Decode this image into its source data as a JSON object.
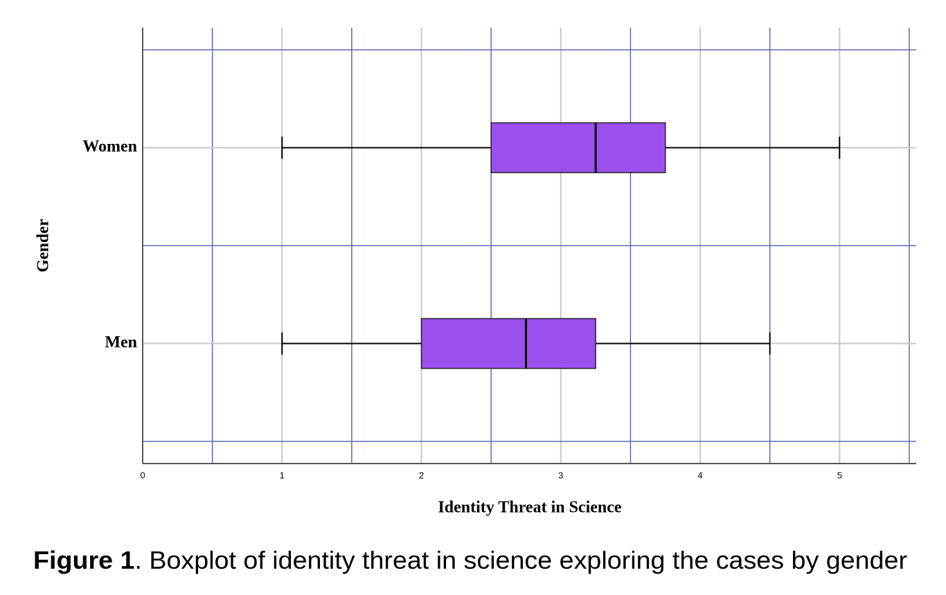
{
  "chart_data": {
    "type": "boxplot",
    "xlabel": "Identity Threat in Science",
    "ylabel": "Gender",
    "categories": [
      "Women",
      "Men"
    ],
    "boxes": [
      {
        "min": 1,
        "q1": 2.5,
        "median": 3.25,
        "q3": 3.75,
        "max": 5
      },
      {
        "min": 1,
        "q1": 2,
        "median": 2.75,
        "q3": 3.25,
        "max": 4.5
      }
    ],
    "color": "#9b4fec",
    "xlim": [
      0,
      5.55
    ],
    "xticks": [
      0,
      1,
      2,
      3,
      4,
      5
    ],
    "minor_xticks": [
      0.5,
      1.5,
      2.5,
      3.5,
      4.5,
      5.5
    ],
    "grid": true
  },
  "caption": {
    "label": "Figure 1",
    "text": ". Boxplot of identity threat in science exploring the cases by gender"
  }
}
